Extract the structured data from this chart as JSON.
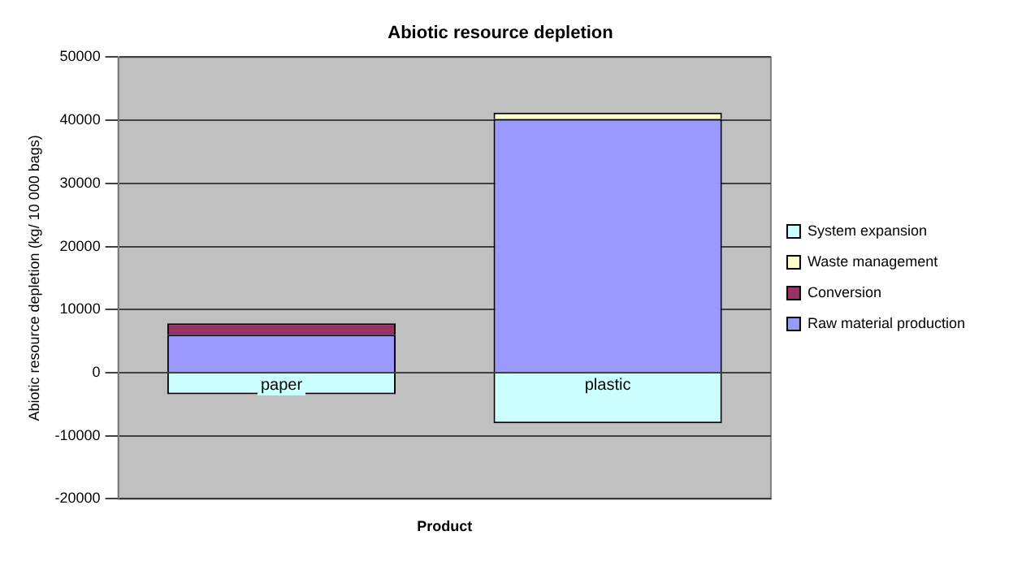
{
  "chart_data": {
    "type": "bar",
    "title": "Abiotic resource depletion",
    "xlabel": "Product",
    "ylabel": "Abiotic resource depletion (kg/ 10 000 bags)",
    "categories": [
      "paper",
      "plastic"
    ],
    "stacked": true,
    "series": [
      {
        "name": "Raw material production",
        "color": "#9999ff",
        "values": [
          6000,
          40200
        ]
      },
      {
        "name": "Conversion",
        "color": "#993366",
        "values": [
          1800,
          0
        ]
      },
      {
        "name": "Waste management",
        "color": "#ffffcc",
        "values": [
          0,
          1000
        ]
      },
      {
        "name": "System expansion",
        "color": "#ccffff",
        "values": [
          -3400,
          -8000
        ]
      }
    ],
    "ylim": [
      -20000,
      50000
    ],
    "yticks": [
      -20000,
      -10000,
      0,
      10000,
      20000,
      30000,
      40000,
      50000
    ],
    "grid": "y",
    "legend": "right"
  }
}
